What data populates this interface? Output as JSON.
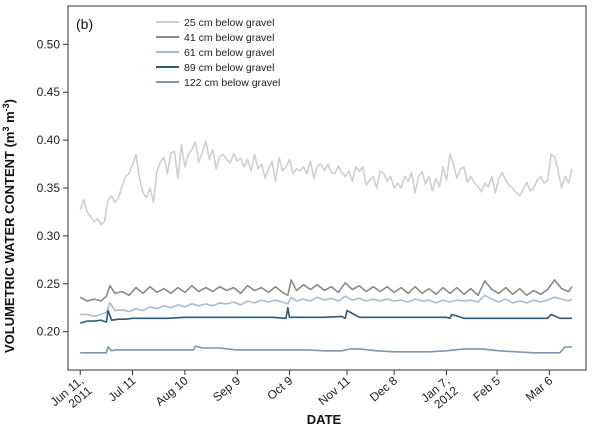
{
  "chart_data": {
    "type": "line",
    "panel_label": "(b)",
    "xlabel": "DATE",
    "ylabel_main": "VOLUMETRIC WATER CONTENT (m",
    "ylabel_sup1": "3",
    "ylabel_mid": " m",
    "ylabel_sup2": "-3",
    "ylabel_end": ")",
    "ylim": [
      0.16,
      0.54
    ],
    "xlim": [
      -7,
      290
    ],
    "yticks": [
      {
        "value": 0.2,
        "label": "0.20"
      },
      {
        "value": 0.25,
        "label": "0.25"
      },
      {
        "value": 0.3,
        "label": "0.30"
      },
      {
        "value": 0.35,
        "label": "0.35"
      },
      {
        "value": 0.4,
        "label": "0.40"
      },
      {
        "value": 0.45,
        "label": "0.45"
      },
      {
        "value": 0.5,
        "label": "0.50"
      }
    ],
    "xticks": [
      {
        "value": 0,
        "lines": [
          "Jun 11,",
          "2011"
        ]
      },
      {
        "value": 30,
        "lines": [
          "Jul 11"
        ]
      },
      {
        "value": 60,
        "lines": [
          "Aug 10"
        ]
      },
      {
        "value": 90,
        "lines": [
          "Sep 9"
        ]
      },
      {
        "value": 120,
        "lines": [
          "Oct 9"
        ]
      },
      {
        "value": 153,
        "lines": [
          "Nov 11"
        ]
      },
      {
        "value": 180,
        "lines": [
          "Dec 8"
        ]
      },
      {
        "value": 210,
        "lines": [
          "Jan 7,",
          "2012"
        ]
      },
      {
        "value": 239,
        "lines": [
          "Feb 5"
        ]
      },
      {
        "value": 269,
        "lines": [
          "Mar 6"
        ]
      }
    ],
    "x_unit_note": "days since Jun 11, 2011",
    "legend_position": "top-center",
    "series": [
      {
        "name": "25 cm below gravel",
        "color": "#cfcfcf",
        "x": [
          0,
          2,
          4,
          6,
          8,
          10,
          12,
          14,
          16,
          18,
          20,
          22,
          24,
          26,
          28,
          30,
          32,
          34,
          36,
          38,
          40,
          42,
          44,
          46,
          48,
          50,
          52,
          54,
          56,
          58,
          60,
          62,
          64,
          66,
          68,
          70,
          72,
          74,
          76,
          78,
          80,
          82,
          84,
          86,
          88,
          90,
          92,
          94,
          96,
          98,
          100,
          102,
          104,
          106,
          108,
          110,
          112,
          114,
          116,
          118,
          120,
          122,
          124,
          126,
          128,
          130,
          132,
          134,
          136,
          138,
          140,
          142,
          144,
          146,
          148,
          150,
          152,
          154,
          156,
          158,
          160,
          162,
          164,
          166,
          168,
          170,
          172,
          174,
          176,
          178,
          180,
          182,
          184,
          186,
          188,
          190,
          192,
          194,
          196,
          198,
          200,
          202,
          204,
          206,
          208,
          210,
          212,
          214,
          216,
          218,
          220,
          222,
          224,
          226,
          228,
          230,
          232,
          234,
          236,
          238,
          240,
          242,
          244,
          246,
          248,
          250,
          252,
          254,
          256,
          258,
          260,
          262,
          264,
          266,
          268,
          270,
          272,
          274,
          276,
          278,
          280,
          282
        ],
        "values": [
          0.327,
          0.338,
          0.325,
          0.32,
          0.315,
          0.318,
          0.312,
          0.315,
          0.338,
          0.342,
          0.335,
          0.34,
          0.352,
          0.362,
          0.365,
          0.375,
          0.385,
          0.36,
          0.345,
          0.34,
          0.35,
          0.335,
          0.368,
          0.377,
          0.382,
          0.365,
          0.387,
          0.388,
          0.36,
          0.395,
          0.372,
          0.385,
          0.39,
          0.398,
          0.377,
          0.387,
          0.399,
          0.38,
          0.39,
          0.37,
          0.383,
          0.385,
          0.38,
          0.376,
          0.386,
          0.378,
          0.381,
          0.372,
          0.38,
          0.368,
          0.385,
          0.37,
          0.375,
          0.36,
          0.37,
          0.378,
          0.357,
          0.382,
          0.368,
          0.372,
          0.38,
          0.365,
          0.37,
          0.368,
          0.372,
          0.365,
          0.378,
          0.36,
          0.373,
          0.375,
          0.368,
          0.375,
          0.366,
          0.365,
          0.373,
          0.366,
          0.362,
          0.368,
          0.357,
          0.372,
          0.367,
          0.372,
          0.353,
          0.358,
          0.362,
          0.35,
          0.368,
          0.365,
          0.357,
          0.362,
          0.35,
          0.355,
          0.35,
          0.362,
          0.357,
          0.366,
          0.345,
          0.362,
          0.367,
          0.354,
          0.362,
          0.347,
          0.36,
          0.351,
          0.372,
          0.358,
          0.386,
          0.375,
          0.36,
          0.37,
          0.372,
          0.356,
          0.362,
          0.355,
          0.352,
          0.346,
          0.355,
          0.351,
          0.362,
          0.345,
          0.36,
          0.366,
          0.358,
          0.352,
          0.35,
          0.345,
          0.342,
          0.348,
          0.356,
          0.347,
          0.35,
          0.358,
          0.362,
          0.355,
          0.358,
          0.385,
          0.382,
          0.368,
          0.35,
          0.362,
          0.355,
          0.37
        ]
      },
      {
        "name": "41 cm below gravel",
        "color": "#8a8a8a",
        "x": [
          0,
          4,
          8,
          12,
          15,
          17,
          20,
          24,
          28,
          32,
          36,
          40,
          44,
          48,
          52,
          56,
          60,
          64,
          68,
          72,
          76,
          80,
          84,
          88,
          92,
          96,
          100,
          104,
          108,
          112,
          116,
          119,
          121,
          124,
          128,
          132,
          136,
          140,
          144,
          148,
          152,
          156,
          160,
          164,
          168,
          172,
          176,
          180,
          184,
          188,
          192,
          196,
          200,
          204,
          208,
          212,
          216,
          220,
          224,
          228,
          232,
          236,
          240,
          244,
          248,
          252,
          256,
          260,
          264,
          268,
          272,
          276,
          280,
          282
        ],
        "values": [
          0.236,
          0.232,
          0.234,
          0.232,
          0.237,
          0.248,
          0.24,
          0.242,
          0.238,
          0.246,
          0.24,
          0.247,
          0.241,
          0.245,
          0.24,
          0.246,
          0.241,
          0.248,
          0.242,
          0.246,
          0.242,
          0.247,
          0.243,
          0.246,
          0.24,
          0.248,
          0.243,
          0.246,
          0.241,
          0.247,
          0.241,
          0.238,
          0.254,
          0.243,
          0.249,
          0.244,
          0.249,
          0.243,
          0.247,
          0.241,
          0.251,
          0.244,
          0.248,
          0.242,
          0.247,
          0.242,
          0.247,
          0.241,
          0.246,
          0.24,
          0.247,
          0.24,
          0.245,
          0.239,
          0.246,
          0.24,
          0.246,
          0.239,
          0.245,
          0.238,
          0.253,
          0.244,
          0.24,
          0.246,
          0.239,
          0.245,
          0.238,
          0.243,
          0.239,
          0.244,
          0.254,
          0.245,
          0.242,
          0.247
        ]
      },
      {
        "name": "61 cm below gravel",
        "color": "#a9bccb",
        "x": [
          0,
          4,
          8,
          12,
          15,
          17,
          20,
          24,
          28,
          32,
          36,
          40,
          44,
          48,
          52,
          56,
          60,
          64,
          68,
          72,
          76,
          80,
          84,
          88,
          92,
          96,
          100,
          104,
          108,
          112,
          116,
          119,
          121,
          124,
          128,
          132,
          136,
          140,
          144,
          148,
          152,
          156,
          160,
          164,
          168,
          172,
          176,
          180,
          184,
          188,
          192,
          196,
          200,
          204,
          208,
          212,
          216,
          220,
          224,
          228,
          232,
          236,
          240,
          244,
          248,
          252,
          256,
          260,
          264,
          268,
          272,
          276,
          280,
          282
        ],
        "values": [
          0.218,
          0.218,
          0.216,
          0.218,
          0.22,
          0.23,
          0.222,
          0.223,
          0.221,
          0.224,
          0.222,
          0.226,
          0.224,
          0.227,
          0.225,
          0.228,
          0.226,
          0.229,
          0.227,
          0.229,
          0.227,
          0.23,
          0.229,
          0.231,
          0.228,
          0.232,
          0.23,
          0.233,
          0.231,
          0.233,
          0.231,
          0.229,
          0.236,
          0.232,
          0.234,
          0.232,
          0.236,
          0.233,
          0.235,
          0.232,
          0.237,
          0.233,
          0.235,
          0.232,
          0.234,
          0.232,
          0.234,
          0.232,
          0.233,
          0.231,
          0.234,
          0.232,
          0.233,
          0.23,
          0.233,
          0.231,
          0.233,
          0.232,
          0.233,
          0.231,
          0.238,
          0.234,
          0.231,
          0.234,
          0.23,
          0.232,
          0.23,
          0.233,
          0.231,
          0.233,
          0.236,
          0.234,
          0.232,
          0.234
        ]
      },
      {
        "name": "89 cm below gravel",
        "color": "#2e5979",
        "x": [
          0,
          4,
          8,
          12,
          15,
          16,
          18,
          22,
          26,
          30,
          40,
          50,
          60,
          70,
          80,
          90,
          100,
          110,
          118,
          119,
          120,
          130,
          140,
          150,
          152,
          153,
          160,
          170,
          180,
          190,
          200,
          210,
          212,
          213,
          220,
          230,
          240,
          250,
          260,
          268,
          270,
          275,
          282
        ],
        "values": [
          0.209,
          0.211,
          0.211,
          0.212,
          0.21,
          0.222,
          0.212,
          0.213,
          0.213,
          0.214,
          0.214,
          0.214,
          0.215,
          0.215,
          0.215,
          0.215,
          0.215,
          0.215,
          0.214,
          0.225,
          0.215,
          0.215,
          0.215,
          0.216,
          0.214,
          0.222,
          0.215,
          0.215,
          0.215,
          0.215,
          0.215,
          0.215,
          0.214,
          0.218,
          0.214,
          0.214,
          0.214,
          0.214,
          0.214,
          0.214,
          0.218,
          0.214,
          0.214
        ]
      },
      {
        "name": "122 cm below gravel",
        "color": "#7a98b0",
        "x": [
          0,
          10,
          15,
          16,
          18,
          20,
          30,
          40,
          50,
          60,
          65,
          66,
          70,
          80,
          90,
          100,
          110,
          120,
          130,
          140,
          150,
          155,
          160,
          170,
          180,
          190,
          200,
          210,
          220,
          230,
          240,
          250,
          260,
          268,
          275,
          278,
          282
        ],
        "values": [
          0.178,
          0.178,
          0.178,
          0.184,
          0.18,
          0.181,
          0.181,
          0.181,
          0.181,
          0.181,
          0.181,
          0.185,
          0.183,
          0.183,
          0.181,
          0.181,
          0.181,
          0.181,
          0.181,
          0.18,
          0.18,
          0.182,
          0.182,
          0.18,
          0.179,
          0.179,
          0.179,
          0.18,
          0.182,
          0.182,
          0.18,
          0.179,
          0.178,
          0.178,
          0.178,
          0.184,
          0.184
        ]
      }
    ]
  }
}
